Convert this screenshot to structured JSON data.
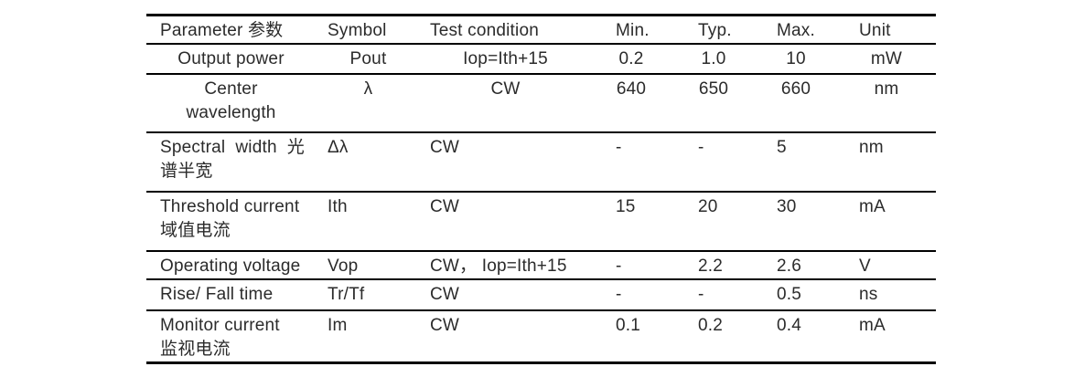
{
  "colors": {
    "background": "#ffffff",
    "text": "#2b2b2b",
    "rule_line": "#000000"
  },
  "table": {
    "columns": [
      {
        "label": "Parameter 参数"
      },
      {
        "label": "Symbol"
      },
      {
        "label": "Test condition"
      },
      {
        "label": "Min."
      },
      {
        "label": "Typ."
      },
      {
        "label": "Max."
      },
      {
        "label": "Unit"
      }
    ],
    "rows": [
      {
        "align": "center",
        "parameter": [
          "Output power"
        ],
        "symbol": "Pout",
        "test_condition": "Iop=Ith+15",
        "min": "0.2",
        "typ": "1.0",
        "max": "10",
        "unit": "mW"
      },
      {
        "align": "center",
        "parameter": [
          "Center",
          "wavelength"
        ],
        "symbol": "λ",
        "test_condition": "CW",
        "min": "640",
        "typ": "650",
        "max": "660",
        "unit": "nm"
      },
      {
        "align": "left",
        "justify_first_line": true,
        "parameter": [
          "Spectral width 光",
          "谱半宽"
        ],
        "symbol": "Δλ",
        "test_condition": "CW",
        "min": "-",
        "typ": "-",
        "max": "5",
        "unit": "nm"
      },
      {
        "align": "left",
        "parameter": [
          "Threshold current",
          "域值电流"
        ],
        "symbol": "Ith",
        "test_condition": "CW",
        "min": "15",
        "typ": "20",
        "max": "30",
        "unit": "mA"
      },
      {
        "align": "left",
        "parameter": [
          "Operating voltage"
        ],
        "symbol": "Vop",
        "test_condition": "CW， Iop=Ith+15",
        "min": "-",
        "typ": "2.2",
        "max": "2.6",
        "unit": "V"
      },
      {
        "align": "left",
        "parameter": [
          "Rise/ Fall time"
        ],
        "symbol": "Tr/Tf",
        "test_condition": "CW",
        "min": "-",
        "typ": "-",
        "max": "0.5",
        "unit": "ns"
      },
      {
        "align": "left",
        "parameter": [
          "Monitor current",
          "监视电流"
        ],
        "symbol": "Im",
        "test_condition": "CW",
        "min": "0.1",
        "typ": "0.2",
        "max": "0.4",
        "unit": "mA"
      }
    ]
  }
}
